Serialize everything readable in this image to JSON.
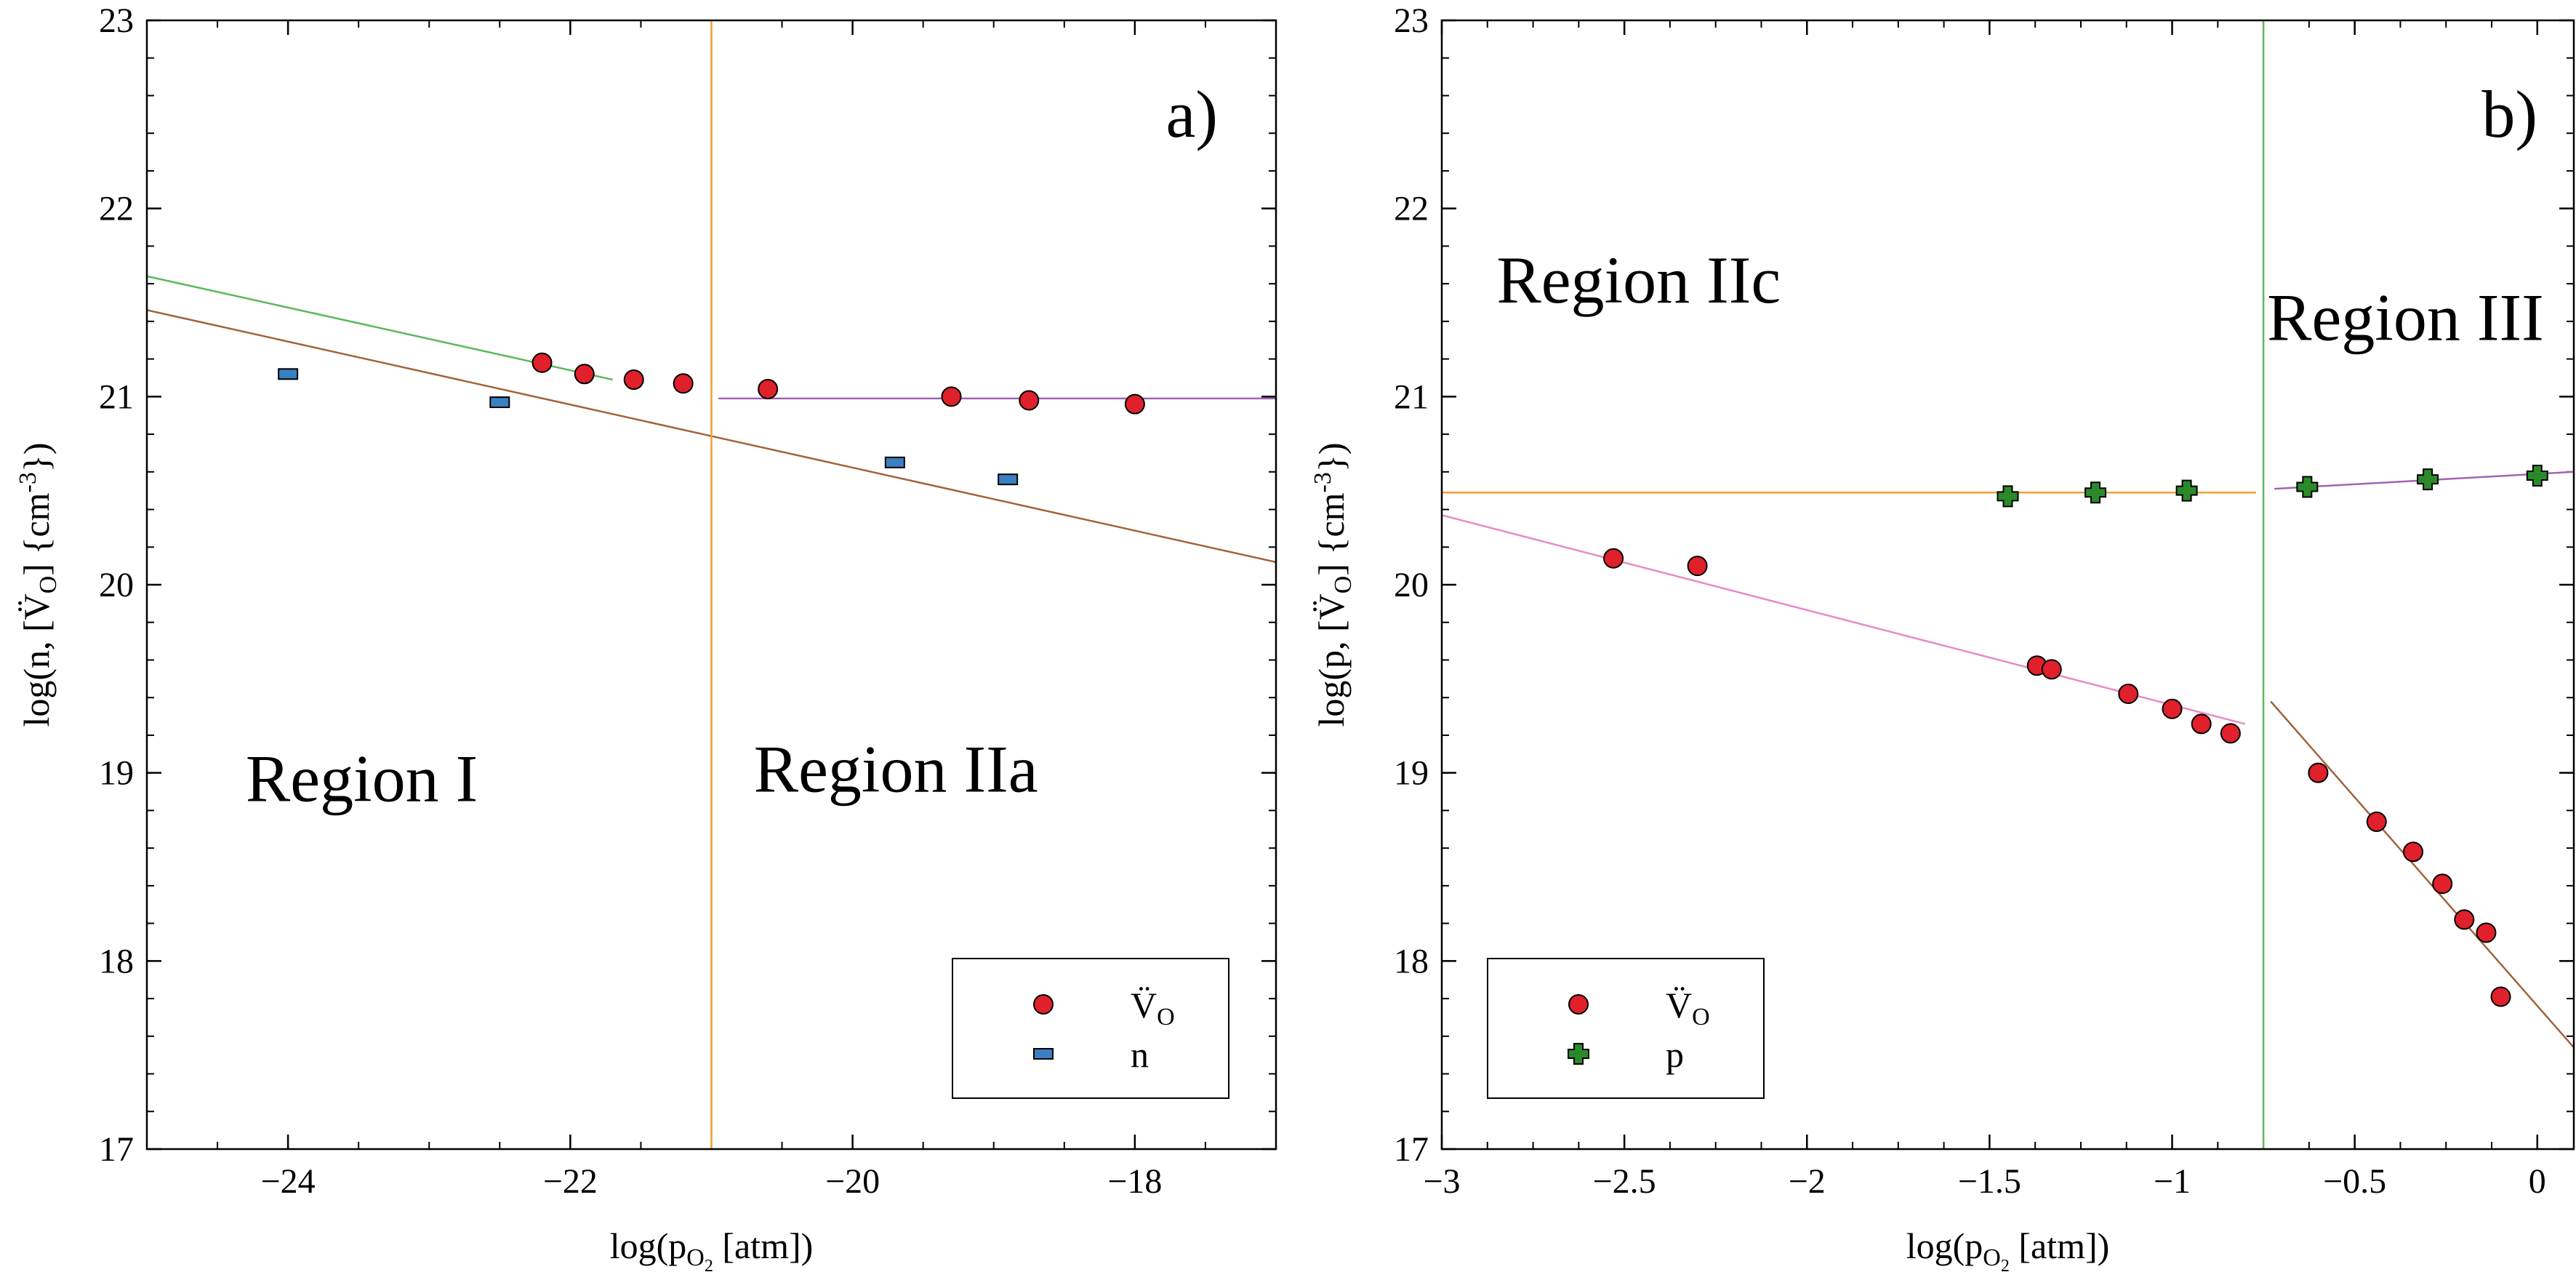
{
  "chart_data": [
    {
      "id": "a",
      "type": "scatter",
      "panel_label": "a)",
      "xlabel": "log(p",
      "xlabel_sub": "O",
      "xlabel_subsub": "2",
      "xlabel_tail": " [atm])",
      "ylabel": "log(n, [V̈",
      "ylabel_sub": "O",
      "ylabel_tail": "] {cm",
      "ylabel_sup": "-3",
      "ylabel_end": "})",
      "xlim": [
        -25,
        -17
      ],
      "ylim": [
        17,
        23
      ],
      "xticks": [
        -24,
        -22,
        -20,
        -18
      ],
      "xtick_labels": [
        "−24",
        "−22",
        "−20",
        "−18"
      ],
      "yticks": [
        17,
        18,
        19,
        20,
        21,
        22,
        23
      ],
      "ytick_labels": [
        "17",
        "18",
        "19",
        "20",
        "21",
        "22",
        "23"
      ],
      "series": [
        {
          "name": "V̈",
          "name_sub": "O",
          "marker": "circle",
          "color": "#e0202a",
          "x": [
            -22.2,
            -21.9,
            -21.55,
            -21.2,
            -20.6,
            -19.3,
            -18.75,
            -18.0
          ],
          "y": [
            21.18,
            21.12,
            21.09,
            21.07,
            21.04,
            21.0,
            20.98,
            20.96
          ]
        },
        {
          "name": "n",
          "marker": "rect",
          "color": "#3a7fc1",
          "x": [
            -24.0,
            -22.5,
            -19.7,
            -18.9
          ],
          "y": [
            21.12,
            20.97,
            20.65,
            20.56
          ]
        }
      ],
      "lines": [
        {
          "color": "#5cb85c",
          "x": [
            -25,
            -21.7
          ],
          "y": [
            21.64,
            21.09
          ]
        },
        {
          "color": "#a0643c",
          "x": [
            -25,
            -17
          ],
          "y": [
            21.46,
            20.12
          ]
        },
        {
          "color": "#a064b4",
          "x": [
            -20.95,
            -17
          ],
          "y": [
            20.99,
            20.99
          ]
        },
        {
          "color": "#f0a030",
          "x": [
            -21.0,
            -21.0
          ],
          "y": [
            17,
            23
          ]
        }
      ],
      "regions": [
        {
          "text": "Region I",
          "x": -24.3,
          "y": 18.85
        },
        {
          "text": "Region IIa",
          "x": -20.7,
          "y": 18.9
        }
      ],
      "legend": "bottom-right"
    },
    {
      "id": "b",
      "type": "scatter",
      "panel_label": "b)",
      "xlabel": "log(p",
      "xlabel_sub": "O",
      "xlabel_subsub": "2",
      "xlabel_tail": " [atm])",
      "ylabel": "log(p, [V̈",
      "ylabel_sub": "O",
      "ylabel_tail": "] {cm",
      "ylabel_sup": "-3",
      "ylabel_end": "})",
      "xlim": [
        -3,
        0.1
      ],
      "ylim": [
        17,
        23
      ],
      "xticks": [
        -3,
        -2.5,
        -2,
        -1.5,
        -1,
        -0.5,
        0
      ],
      "xtick_labels": [
        "−3",
        "−2.5",
        "−2",
        "−1.5",
        "−1",
        "−0.5",
        "0"
      ],
      "yticks": [
        17,
        18,
        19,
        20,
        21,
        22,
        23
      ],
      "ytick_labels": [
        "17",
        "18",
        "19",
        "20",
        "21",
        "22",
        "23"
      ],
      "series": [
        {
          "name": "V̈",
          "name_sub": "O",
          "marker": "circle",
          "color": "#e0202a",
          "x": [
            -2.53,
            -2.3,
            -1.37,
            -1.33,
            -1.12,
            -1.0,
            -0.92,
            -0.84,
            -0.6,
            -0.44,
            -0.34,
            -0.26,
            -0.2,
            -0.14,
            -0.1
          ],
          "y": [
            20.14,
            20.1,
            19.57,
            19.55,
            19.42,
            19.34,
            19.26,
            19.21,
            19.0,
            18.74,
            18.58,
            18.41,
            18.22,
            18.15,
            17.81
          ]
        },
        {
          "name": "p",
          "marker": "cross",
          "color": "#2a8a2a",
          "x": [
            -1.45,
            -1.21,
            -0.96,
            -0.63,
            -0.3,
            0.0
          ],
          "y": [
            20.47,
            20.49,
            20.5,
            20.52,
            20.56,
            20.58
          ]
        }
      ],
      "lines": [
        {
          "color": "#f0a030",
          "x": [
            -3,
            -0.77
          ],
          "y": [
            20.49,
            20.49
          ]
        },
        {
          "color": "#e68cc8",
          "x": [
            -3,
            -0.8
          ],
          "y": [
            20.37,
            19.26
          ]
        },
        {
          "color": "#a064b4",
          "x": [
            -0.72,
            0.1
          ],
          "y": [
            20.51,
            20.6
          ]
        },
        {
          "color": "#a0643c",
          "x": [
            -0.73,
            0.1
          ],
          "y": [
            19.38,
            17.54
          ]
        },
        {
          "color": "#5cb85c",
          "x": [
            -0.75,
            -0.75
          ],
          "y": [
            17,
            23
          ]
        }
      ],
      "regions": [
        {
          "text": "Region IIc",
          "x": -2.85,
          "y": 21.5
        },
        {
          "text": "Region III",
          "x": -0.74,
          "y": 21.3
        }
      ],
      "legend": "bottom-left"
    }
  ]
}
